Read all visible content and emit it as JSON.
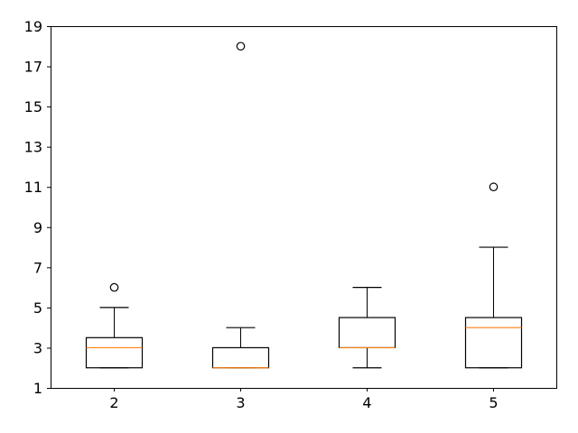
{
  "chart_data": {
    "type": "box",
    "categories": [
      "2",
      "3",
      "4",
      "5"
    ],
    "ylim": [
      1,
      19
    ],
    "yticks": [
      1,
      3,
      5,
      7,
      9,
      11,
      13,
      15,
      17,
      19
    ],
    "ytick_labels": [
      "1",
      "3",
      "5",
      "7",
      "9",
      "11",
      "13",
      "15",
      "17",
      "19"
    ],
    "grid": false,
    "boxes": [
      {
        "category": "2",
        "whisker_low": 2,
        "q1": 2,
        "median": 3,
        "q3": 3.5,
        "whisker_high": 5,
        "outliers": [
          6
        ]
      },
      {
        "category": "3",
        "whisker_low": 2,
        "q1": 2,
        "median": 2,
        "q3": 3,
        "whisker_high": 4,
        "outliers": [
          18
        ]
      },
      {
        "category": "4",
        "whisker_low": 2,
        "q1": 3,
        "median": 3,
        "q3": 4.5,
        "whisker_high": 6,
        "outliers": []
      },
      {
        "category": "5",
        "whisker_low": 2,
        "q1": 2,
        "median": 4,
        "q3": 4.5,
        "whisker_high": 8,
        "outliers": [
          11
        ]
      }
    ],
    "colors": {
      "box": "#000000",
      "median": "#ff7f0e",
      "outlier": "#000000"
    }
  }
}
